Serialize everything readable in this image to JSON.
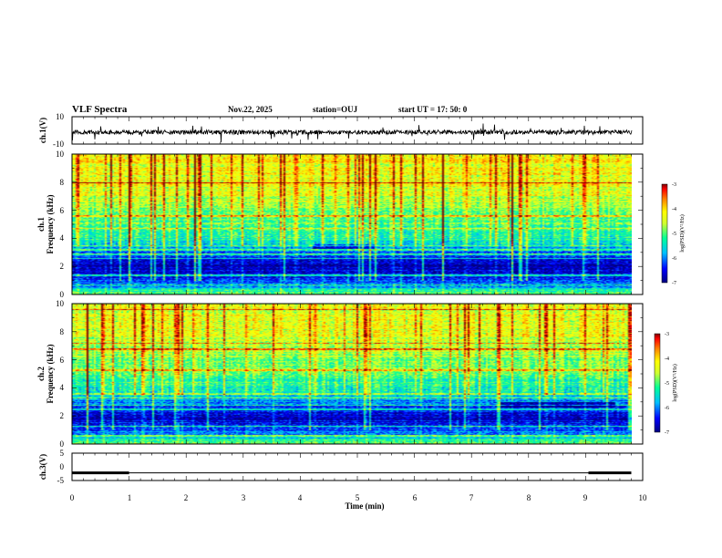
{
  "header": {
    "title": "VLF Spectra",
    "date": "Nov.22, 2025",
    "station": "station=OUJ",
    "start_ut": "start UT =  17: 50: 0"
  },
  "colors": {
    "background": "#ffffff",
    "axes": "#000000",
    "colormap": [
      "#00007f",
      "#0000ff",
      "#00bfff",
      "#00ff99",
      "#d0ff30",
      "#ffff00",
      "#ff8000",
      "#ff0000",
      "#7f0000"
    ]
  },
  "chart_data": [
    {
      "type": "line",
      "name": "ch1-waveform",
      "ylabel": "ch.1(V)",
      "yticks": [
        "10",
        "-10"
      ],
      "ylim": [
        -10,
        10
      ],
      "xlim": [
        0,
        10
      ],
      "baseline_value": 0,
      "note_values": "noisy waveform, amplitude about ±2 V with sporadic spikes"
    },
    {
      "type": "heatmap",
      "name": "ch1-spectrogram",
      "ylabel_line1": "ch.1",
      "ylabel_line2": "Frequency (kHz)",
      "yticks": [
        "0",
        "2",
        "4",
        "6",
        "8",
        "10"
      ],
      "ylim": [
        0,
        10
      ],
      "xlim": [
        0,
        10
      ],
      "colorbar": {
        "label": "log(PSD)(V²/Hz)",
        "ticks": [
          "-3",
          "-4",
          "-5",
          "-6",
          "-7"
        ],
        "range": [
          -7,
          -3
        ]
      },
      "frequency_profile_khz": [
        0,
        0.5,
        1,
        1.5,
        2,
        2.5,
        3,
        3.5,
        4,
        5,
        6,
        7,
        8,
        10
      ],
      "log_psd_profile": [
        -4.6,
        -5.8,
        -6.2,
        -6.6,
        -6.8,
        -6.5,
        -6.1,
        -5.7,
        -5.3,
        -5.0,
        -4.8,
        -4.5,
        -4.3,
        -4.2
      ],
      "tone_lines_khz": [
        0.7,
        1.4,
        2.6,
        2.9,
        3.2,
        3.5,
        4.75,
        5.6,
        8.0
      ],
      "dark_band_khz": [
        3.3,
        3.6
      ],
      "dark_band_time_min": [
        4.2,
        5.3
      ]
    },
    {
      "type": "heatmap",
      "name": "ch2-spectrogram",
      "ylabel_line1": "ch.2",
      "ylabel_line2": "Frequency (kHz)",
      "yticks": [
        "0",
        "2",
        "4",
        "6",
        "8",
        "10"
      ],
      "ylim": [
        0,
        10
      ],
      "xlim": [
        0,
        10
      ],
      "colorbar": {
        "label": "log(PSD)(V²/Hz)",
        "ticks": [
          "-3",
          "-4",
          "-5",
          "-6",
          "-7"
        ],
        "range": [
          -7,
          -3
        ]
      },
      "frequency_profile_khz": [
        0,
        0.5,
        1,
        1.5,
        2,
        2.5,
        3,
        3.5,
        4,
        5,
        6,
        7,
        8,
        10
      ],
      "log_psd_profile": [
        -4.6,
        -5.6,
        -6.1,
        -6.5,
        -6.7,
        -6.4,
        -6.0,
        -5.6,
        -5.3,
        -5.0,
        -4.8,
        -4.5,
        -4.4,
        -4.3
      ],
      "tone_lines_khz": [
        0.6,
        1.3,
        2.5,
        2.8,
        3.3,
        3.6,
        5.3,
        6.8,
        7.2,
        9.6
      ],
      "dark_band_khz": [
        2.6,
        3.0
      ],
      "dark_band_time_min": [
        7.5,
        9.5
      ]
    },
    {
      "type": "line",
      "name": "ch3-waveform",
      "ylabel": "ch.3(V)",
      "yticks": [
        "5",
        "0",
        "-5"
      ],
      "ylim": [
        -5,
        5
      ],
      "xlim": [
        0,
        10
      ],
      "xlabel": "Time (min)",
      "xticks": [
        "0",
        "1",
        "2",
        "3",
        "4",
        "5",
        "6",
        "7",
        "8",
        "9",
        "10"
      ],
      "level_value": -2.2,
      "thick_segments_min": [
        [
          0,
          1
        ],
        [
          9.05,
          9.8
        ]
      ],
      "data_end_min": 9.8
    }
  ]
}
